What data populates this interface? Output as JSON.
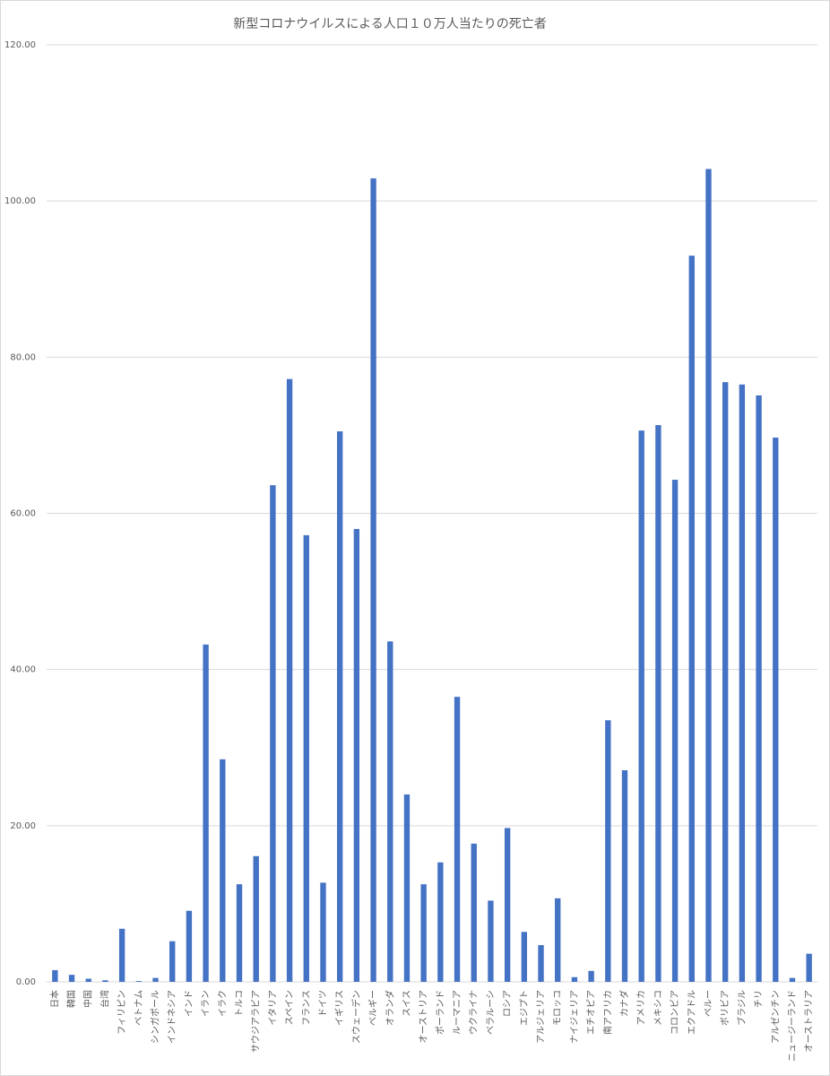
{
  "chart_data": {
    "type": "bar",
    "title": "新型コロナウイルスによる人口１０万人当たりの死亡者",
    "categories": [
      "日本",
      "韓国",
      "中国",
      "台湾",
      "フィリピン",
      "ベトナム",
      "シンガポール",
      "インドネシア",
      "インド",
      "イラン",
      "イラク",
      "トルコ",
      "サウジアラビア",
      "イタリア",
      "スペイン",
      "フランス",
      "ドイツ",
      "イギリス",
      "スウェーデン",
      "ベルギー",
      "オランダ",
      "スイス",
      "オーストリア",
      "ポーランド",
      "ルーマニア",
      "ウクライナ",
      "ベラルーシ",
      "ロシア",
      "エジプト",
      "アルジェリア",
      "モロッコ",
      "ナイジェリア",
      "エチオピア",
      "南アフリカ",
      "カナダ",
      "アメリカ",
      "メキシコ",
      "コロンビア",
      "エクアドル",
      "ペルー",
      "ボリビア",
      "ブラジル",
      "チリ",
      "アルゼンチン",
      "ニュージーランド",
      "オーストラリア"
    ],
    "values": [
      1.5,
      0.9,
      0.4,
      0.2,
      6.8,
      0.1,
      0.5,
      5.2,
      9.1,
      43.2,
      28.5,
      12.5,
      16.1,
      63.6,
      77.2,
      57.2,
      12.7,
      70.5,
      58.0,
      102.9,
      43.6,
      24.0,
      12.5,
      15.3,
      36.5,
      17.7,
      10.4,
      19.7,
      6.4,
      4.7,
      10.7,
      0.6,
      1.4,
      33.5,
      27.1,
      70.6,
      71.3,
      64.3,
      93.0,
      104.1,
      76.8,
      76.5,
      75.1,
      69.7,
      0.5,
      3.6
    ],
    "color": "#4472c4",
    "ylim": [
      0,
      120
    ],
    "yticks": [
      {
        "value": 0,
        "label": "0.00"
      },
      {
        "value": 20,
        "label": "20.00"
      },
      {
        "value": 40,
        "label": "40.00"
      },
      {
        "value": 60,
        "label": "60.00"
      },
      {
        "value": 80,
        "label": "80.00"
      },
      {
        "value": 100,
        "label": "100.00"
      },
      {
        "value": 120,
        "label": "120.00"
      }
    ],
    "grid": true
  }
}
